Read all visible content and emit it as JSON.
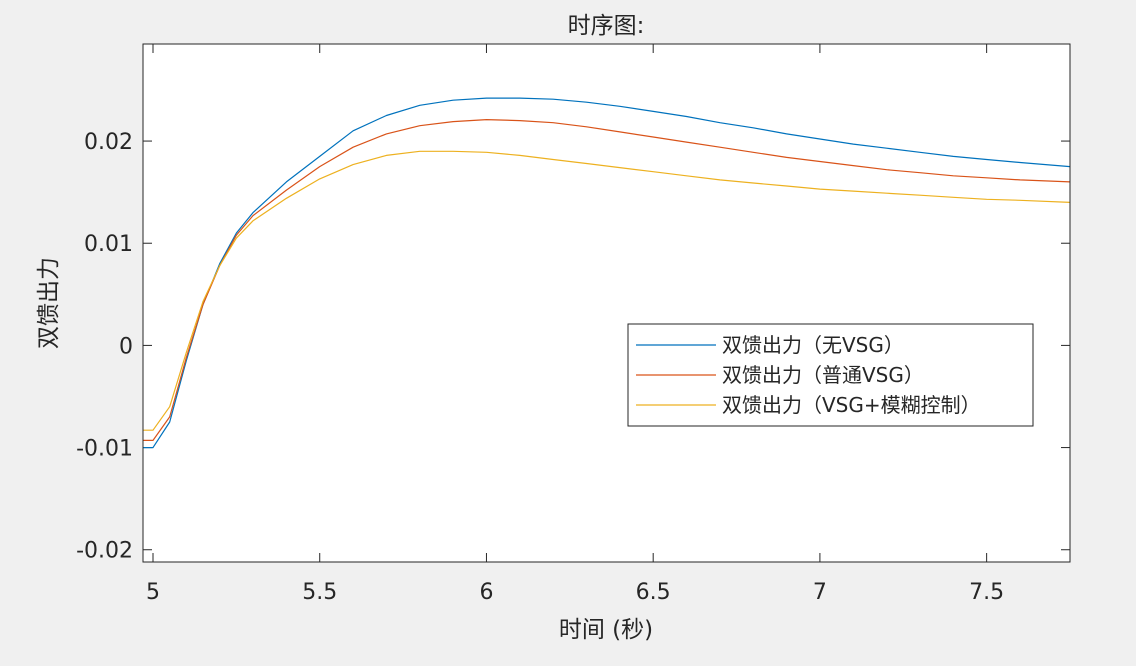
{
  "chart_data": {
    "type": "line",
    "title": "时序图:",
    "xlabel": "时间 (秒)",
    "ylabel": "双馈出力",
    "xlim": [
      4.97,
      7.75
    ],
    "ylim": [
      -0.0212,
      0.0295
    ],
    "xticks": [
      5,
      5.5,
      6,
      6.5,
      7,
      7.5
    ],
    "xtick_labels": [
      "5",
      "5.5",
      "6",
      "6.5",
      "7",
      "7.5"
    ],
    "yticks": [
      -0.02,
      -0.01,
      0,
      0.01,
      0.02
    ],
    "ytick_labels": [
      "-0.02",
      "-0.01",
      "0",
      "0.01",
      "0.02"
    ],
    "grid": false,
    "legend_position": "right-middle",
    "x": [
      4.97,
      5.0,
      5.05,
      5.1,
      5.15,
      5.2,
      5.25,
      5.3,
      5.4,
      5.5,
      5.6,
      5.7,
      5.8,
      5.9,
      6.0,
      6.1,
      6.2,
      6.3,
      6.4,
      6.5,
      6.6,
      6.7,
      6.8,
      6.9,
      7.0,
      7.1,
      7.2,
      7.3,
      7.4,
      7.5,
      7.6,
      7.75
    ],
    "series": [
      {
        "name": "双馈出力（无VSG）",
        "color": "#0072BD",
        "values": [
          -0.01,
          -0.01,
          -0.0075,
          -0.0015,
          0.004,
          0.008,
          0.011,
          0.013,
          0.016,
          0.0185,
          0.021,
          0.0225,
          0.0235,
          0.024,
          0.0242,
          0.0242,
          0.0241,
          0.0238,
          0.0234,
          0.0229,
          0.0224,
          0.0218,
          0.0213,
          0.0207,
          0.0202,
          0.0197,
          0.0193,
          0.0189,
          0.0185,
          0.0182,
          0.0179,
          0.0175
        ]
      },
      {
        "name": "双馈出力（普通VSG）",
        "color": "#D95319",
        "values": [
          -0.0093,
          -0.0093,
          -0.007,
          -0.0012,
          0.004,
          0.0078,
          0.0108,
          0.0127,
          0.0152,
          0.0175,
          0.0194,
          0.0207,
          0.0215,
          0.0219,
          0.0221,
          0.022,
          0.0218,
          0.0214,
          0.0209,
          0.0204,
          0.0199,
          0.0194,
          0.0189,
          0.0184,
          0.018,
          0.0176,
          0.0172,
          0.0169,
          0.0166,
          0.0164,
          0.0162,
          0.016
        ]
      },
      {
        "name": "双馈出力（VSG+模糊控制）",
        "color": "#EDB120",
        "values": [
          -0.0083,
          -0.0083,
          -0.006,
          -0.0007,
          0.0043,
          0.0078,
          0.0105,
          0.0122,
          0.0144,
          0.0163,
          0.0177,
          0.0186,
          0.019,
          0.019,
          0.0189,
          0.0186,
          0.0182,
          0.0178,
          0.0174,
          0.017,
          0.0166,
          0.0162,
          0.0159,
          0.0156,
          0.0153,
          0.0151,
          0.0149,
          0.0147,
          0.0145,
          0.0143,
          0.0142,
          0.014
        ]
      }
    ]
  }
}
